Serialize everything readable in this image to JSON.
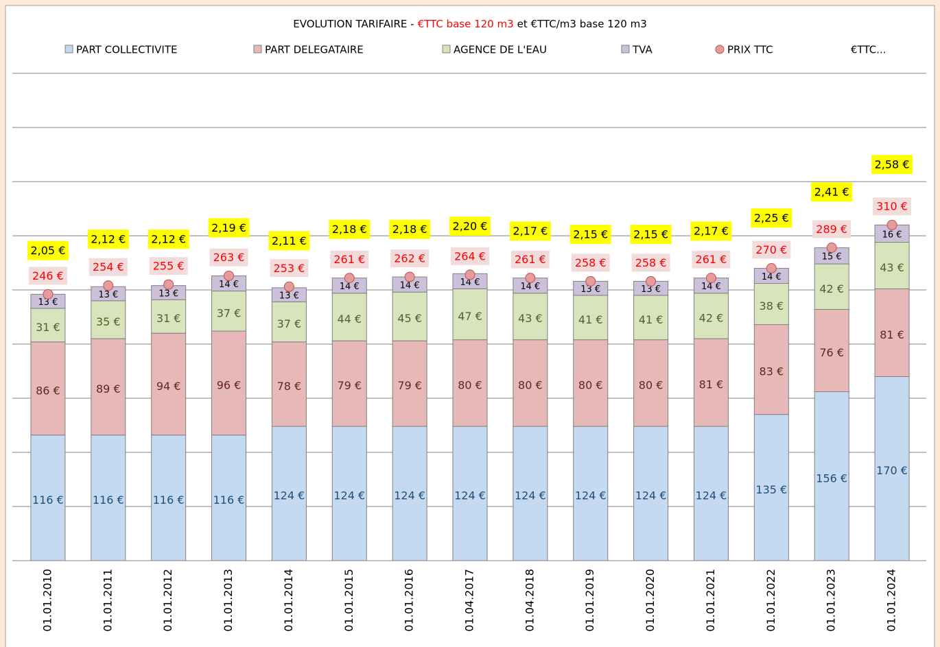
{
  "chart_data": {
    "type": "stacked-bar",
    "title": "EVOLUTION TARIFAIRE -",
    "title_highlight": "€TTC base 120 m3",
    "title_end": "et €TTC/m3 base 120 m3",
    "categories": [
      "01.01.2010",
      "01.01.2011",
      "01.01.2012",
      "01.01.2013",
      "01.01.2014",
      "01.01.2015",
      "01.01.2016",
      "01.04.2017",
      "01.04.2018",
      "01.01.2019",
      "01.01.2020",
      "01.01.2021",
      "01.01.2022",
      "01.01.2023",
      "01.01.2024"
    ],
    "series": [
      {
        "name": "PART COLLECTIVITE",
        "color": "#c5d9f1",
        "label_color": "#1f4e79",
        "values": [
          116,
          116,
          116,
          116,
          124,
          124,
          124,
          124,
          124,
          124,
          124,
          124,
          135,
          156,
          170
        ],
        "value_labels": [
          "116 €",
          "116 €",
          "116 €",
          "116 €",
          "124 €",
          "124 €",
          "124 €",
          "124 €",
          "124 €",
          "124 €",
          "124 €",
          "124 €",
          "135 €",
          "156 €",
          "170 €"
        ]
      },
      {
        "name": "PART DELEGATAIRE",
        "color": "#e6b8b7",
        "label_color": "#632523",
        "values": [
          86,
          89,
          94,
          96,
          78,
          79,
          79,
          80,
          80,
          80,
          80,
          81,
          83,
          76,
          81
        ],
        "value_labels": [
          "86 €",
          "89 €",
          "94 €",
          "96 €",
          "78 €",
          "79 €",
          "79 €",
          "80 €",
          "80 €",
          "80 €",
          "80 €",
          "81 €",
          "83 €",
          "76 €",
          "81 €"
        ]
      },
      {
        "name": "AGENCE DE L'EAU",
        "color": "#d7e4bc",
        "label_color": "#4f6228",
        "values": [
          31,
          35,
          31,
          37,
          37,
          44,
          45,
          47,
          43,
          41,
          41,
          42,
          38,
          42,
          43
        ],
        "value_labels": [
          "31 €",
          "35 €",
          "31 €",
          "37 €",
          "37 €",
          "44 €",
          "45 €",
          "47 €",
          "43 €",
          "41 €",
          "41 €",
          "42 €",
          "38 €",
          "42 €",
          "43 €"
        ]
      },
      {
        "name": "TVA",
        "color": "#ccc0da",
        "label_color": "#000000",
        "values": [
          13,
          13,
          13,
          14,
          13,
          14,
          14,
          14,
          14,
          13,
          13,
          14,
          14,
          15,
          16
        ],
        "value_labels": [
          "13 €",
          "13 €",
          "13 €",
          "14 €",
          "13 €",
          "14 €",
          "14 €",
          "14 €",
          "14 €",
          "13 €",
          "13 €",
          "14 €",
          "14 €",
          "15 €",
          "16 €"
        ]
      }
    ],
    "markers": {
      "name": "PRIX TTC",
      "color": "#e59c9c",
      "label_color": "#ff0000",
      "values": [
        246,
        254,
        255,
        263,
        253,
        261,
        262,
        264,
        261,
        258,
        258,
        261,
        270,
        289,
        310
      ],
      "value_labels": [
        "246 €",
        "254 €",
        "255 €",
        "263 €",
        "253 €",
        "261 €",
        "262 €",
        "264 €",
        "261 €",
        "258 €",
        "258 €",
        "261 €",
        "270 €",
        "289 €",
        "310 €"
      ]
    },
    "per_m3": {
      "name": "€TTC...",
      "axis": "y2",
      "color": "#ffff00",
      "values": [
        2.05,
        2.12,
        2.12,
        2.19,
        2.11,
        2.18,
        2.18,
        2.2,
        2.17,
        2.15,
        2.15,
        2.17,
        2.25,
        2.41,
        2.58
      ],
      "value_labels": [
        "2,05 €",
        "2,12 €",
        "2,12 €",
        "2,19 €",
        "2,11 €",
        "2,18 €",
        "2,18 €",
        "2,20 €",
        "2,17 €",
        "2,15 €",
        "2,15 €",
        "2,17 €",
        "2,25 €",
        "2,41 €",
        "2,58 €"
      ]
    },
    "ylim": [
      0,
      450
    ],
    "yticks": [
      0,
      50,
      100,
      150,
      200,
      250,
      300,
      350,
      400,
      450
    ],
    "y2lim": [
      0.2,
      3.2
    ],
    "grid": true
  }
}
